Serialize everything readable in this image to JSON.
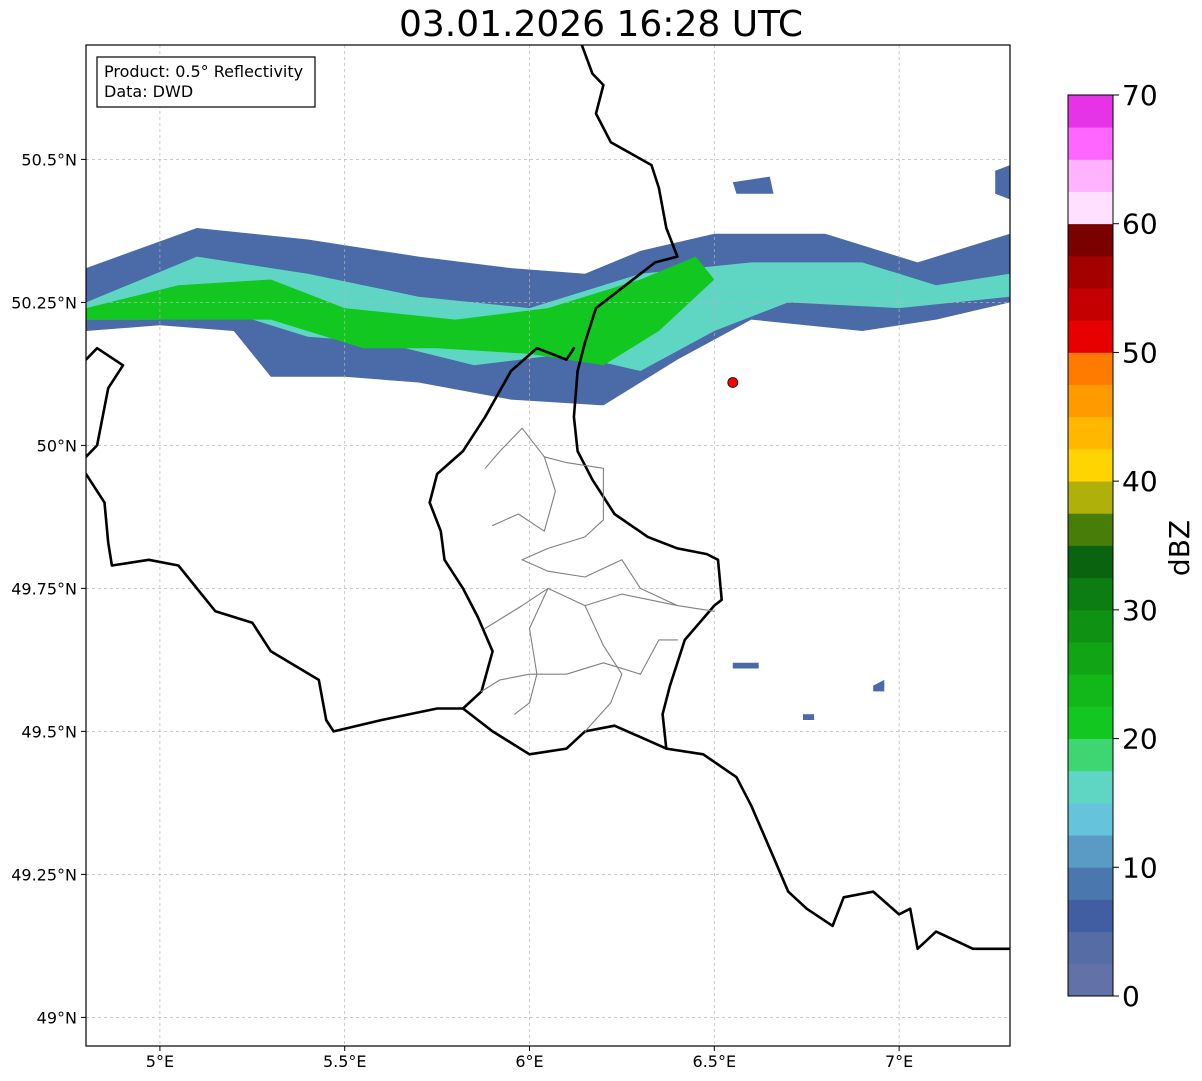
{
  "title": "03.01.2026 16:28 UTC",
  "info_box": {
    "product": "Product: 0.5° Reflectivity",
    "data": "Data: DWD"
  },
  "axes": {
    "lon_ticks": [
      {
        "value": 5.0,
        "label": "5°E"
      },
      {
        "value": 5.5,
        "label": "5.5°E"
      },
      {
        "value": 6.0,
        "label": "6°E"
      },
      {
        "value": 6.5,
        "label": "6.5°E"
      },
      {
        "value": 7.0,
        "label": "7°E"
      }
    ],
    "lat_ticks": [
      {
        "value": 50.5,
        "label": "50.5°N"
      },
      {
        "value": 50.25,
        "label": "50.25°N"
      },
      {
        "value": 50.0,
        "label": "50°N"
      },
      {
        "value": 49.75,
        "label": "49.75°N"
      },
      {
        "value": 49.5,
        "label": "49.5°N"
      },
      {
        "value": 49.25,
        "label": "49.25°N"
      },
      {
        "value": 49.0,
        "label": "49°N"
      }
    ],
    "lon_range": [
      4.8,
      7.3
    ],
    "lat_range": [
      48.95,
      50.7
    ],
    "grid": true
  },
  "colorbar": {
    "label": "dBZ",
    "min": 0,
    "max": 70,
    "ticks": [
      "0",
      "10",
      "20",
      "30",
      "40",
      "50",
      "60",
      "70"
    ],
    "colors": [
      "#6272a8",
      "#556ca5",
      "#425ea3",
      "#4a78ae",
      "#5a9bc6",
      "#66c3dc",
      "#5fd6c3",
      "#3ed673",
      "#12c71f",
      "#12b81a",
      "#11a515",
      "#0f9113",
      "#0c7d12",
      "#09630f",
      "#497d0a",
      "#afb10a",
      "#ffd400",
      "#ffb700",
      "#ff9a00",
      "#ff7b00",
      "#e60000",
      "#c40000",
      "#a50000",
      "#7b0000",
      "#ffe0ff",
      "#ffb3ff",
      "#ff66ff",
      "#e733e7"
    ]
  },
  "marker": {
    "lon": 6.55,
    "lat": 50.11,
    "color": "#ff0000"
  },
  "precip_swaths": [
    {
      "level": "light",
      "color": "#4a6aa8",
      "points": [
        [
          4.8,
          50.31
        ],
        [
          5.1,
          50.38
        ],
        [
          5.4,
          50.36
        ],
        [
          5.7,
          50.33
        ],
        [
          5.95,
          50.31
        ],
        [
          6.15,
          50.3
        ],
        [
          6.3,
          50.34
        ],
        [
          6.5,
          50.37
        ],
        [
          6.8,
          50.37
        ],
        [
          7.05,
          50.32
        ],
        [
          7.3,
          50.37
        ],
        [
          7.3,
          50.25
        ],
        [
          7.1,
          50.22
        ],
        [
          6.9,
          50.2
        ],
        [
          6.6,
          50.22
        ],
        [
          6.4,
          50.15
        ],
        [
          6.2,
          50.07
        ],
        [
          5.95,
          50.08
        ],
        [
          5.7,
          50.11
        ],
        [
          5.5,
          50.12
        ],
        [
          5.3,
          50.12
        ],
        [
          5.2,
          50.2
        ],
        [
          5.0,
          50.21
        ],
        [
          4.8,
          50.2
        ]
      ]
    },
    {
      "level": "moderate",
      "color": "#5fd6c3",
      "points": [
        [
          4.8,
          50.25
        ],
        [
          5.1,
          50.33
        ],
        [
          5.4,
          50.3
        ],
        [
          5.7,
          50.26
        ],
        [
          6.0,
          50.24
        ],
        [
          6.3,
          50.3
        ],
        [
          6.6,
          50.32
        ],
        [
          6.9,
          50.32
        ],
        [
          7.1,
          50.28
        ],
        [
          7.3,
          50.3
        ],
        [
          7.3,
          50.26
        ],
        [
          7.0,
          50.24
        ],
        [
          6.7,
          50.25
        ],
        [
          6.5,
          50.2
        ],
        [
          6.3,
          50.13
        ],
        [
          6.1,
          50.16
        ],
        [
          5.85,
          50.14
        ],
        [
          5.6,
          50.18
        ],
        [
          5.4,
          50.19
        ],
        [
          5.2,
          50.23
        ],
        [
          5.0,
          50.22
        ],
        [
          4.8,
          50.22
        ]
      ]
    },
    {
      "level": "heavy",
      "color": "#12c71f",
      "points": [
        [
          4.8,
          50.24
        ],
        [
          5.05,
          50.28
        ],
        [
          5.3,
          50.29
        ],
        [
          5.5,
          50.24
        ],
        [
          5.8,
          50.22
        ],
        [
          6.05,
          50.24
        ],
        [
          6.3,
          50.29
        ],
        [
          6.45,
          50.33
        ],
        [
          6.5,
          50.29
        ],
        [
          6.35,
          50.2
        ],
        [
          6.2,
          50.14
        ],
        [
          6.0,
          50.16
        ],
        [
          5.75,
          50.17
        ],
        [
          5.55,
          50.17
        ],
        [
          5.3,
          50.22
        ],
        [
          5.1,
          50.22
        ],
        [
          4.8,
          50.22
        ]
      ]
    },
    {
      "level": "light",
      "color": "#4a6aa8",
      "points": [
        [
          6.55,
          50.46
        ],
        [
          6.65,
          50.47
        ],
        [
          6.66,
          50.44
        ],
        [
          6.56,
          50.44
        ]
      ]
    },
    {
      "level": "light",
      "color": "#4a6aa8",
      "points": [
        [
          7.26,
          50.48
        ],
        [
          7.3,
          50.49
        ],
        [
          7.3,
          50.43
        ],
        [
          7.26,
          50.44
        ]
      ]
    },
    {
      "level": "light",
      "color": "#4a6aa8",
      "points": [
        [
          6.55,
          49.62
        ],
        [
          6.62,
          49.62
        ],
        [
          6.62,
          49.61
        ],
        [
          6.55,
          49.61
        ]
      ]
    },
    {
      "level": "light",
      "color": "#4a6aa8",
      "points": [
        [
          6.74,
          49.53
        ],
        [
          6.77,
          49.53
        ],
        [
          6.77,
          49.52
        ],
        [
          6.74,
          49.52
        ]
      ]
    },
    {
      "level": "light",
      "color": "#4a6aa8",
      "points": [
        [
          6.93,
          49.58
        ],
        [
          6.96,
          49.59
        ],
        [
          6.96,
          49.57
        ],
        [
          6.93,
          49.57
        ]
      ]
    }
  ],
  "borders": [
    {
      "kind": "country",
      "points": [
        [
          6.13,
          50.72
        ],
        [
          6.17,
          50.65
        ],
        [
          6.2,
          50.63
        ],
        [
          6.18,
          50.58
        ],
        [
          6.22,
          50.53
        ],
        [
          6.33,
          50.49
        ],
        [
          6.35,
          50.45
        ],
        [
          6.37,
          50.38
        ],
        [
          6.4,
          50.33
        ],
        [
          6.34,
          50.32
        ],
        [
          6.3,
          50.3
        ],
        [
          6.18,
          50.24
        ],
        [
          6.15,
          50.18
        ],
        [
          6.13,
          50.13
        ],
        [
          6.12,
          50.05
        ],
        [
          6.13,
          49.99
        ],
        [
          6.17,
          49.94
        ],
        [
          6.23,
          49.88
        ],
        [
          6.32,
          49.84
        ],
        [
          6.4,
          49.82
        ],
        [
          6.48,
          49.81
        ],
        [
          6.51,
          49.8
        ],
        [
          6.52,
          49.73
        ],
        [
          6.5,
          49.72
        ],
        [
          6.42,
          49.66
        ],
        [
          6.38,
          49.58
        ],
        [
          6.36,
          49.53
        ],
        [
          6.37,
          49.47
        ]
      ]
    },
    {
      "kind": "country",
      "points": [
        [
          6.37,
          49.47
        ],
        [
          6.47,
          49.46
        ],
        [
          6.56,
          49.42
        ],
        [
          6.6,
          49.37
        ],
        [
          6.66,
          49.28
        ],
        [
          6.7,
          49.22
        ],
        [
          6.75,
          49.19
        ],
        [
          6.82,
          49.16
        ],
        [
          6.85,
          49.21
        ],
        [
          6.93,
          49.22
        ],
        [
          7.0,
          49.18
        ],
        [
          7.03,
          49.19
        ],
        [
          7.05,
          49.12
        ],
        [
          7.1,
          49.15
        ],
        [
          7.2,
          49.12
        ],
        [
          7.3,
          49.12
        ]
      ]
    },
    {
      "kind": "country",
      "points": [
        [
          6.37,
          49.47
        ],
        [
          6.3,
          49.49
        ],
        [
          6.23,
          49.51
        ],
        [
          6.15,
          49.5
        ],
        [
          6.1,
          49.47
        ],
        [
          6.0,
          49.46
        ],
        [
          5.9,
          49.5
        ],
        [
          5.82,
          49.54
        ],
        [
          5.75,
          49.54
        ],
        [
          5.6,
          49.52
        ],
        [
          5.47,
          49.5
        ],
        [
          5.45,
          49.52
        ],
        [
          5.43,
          49.59
        ],
        [
          5.3,
          49.64
        ],
        [
          5.25,
          49.69
        ],
        [
          5.15,
          49.71
        ],
        [
          5.05,
          49.79
        ],
        [
          4.97,
          49.8
        ],
        [
          4.87,
          49.79
        ],
        [
          4.86,
          49.83
        ],
        [
          4.85,
          49.9
        ],
        [
          4.8,
          49.95
        ]
      ]
    },
    {
      "kind": "country",
      "points": [
        [
          5.82,
          49.54
        ],
        [
          5.87,
          49.57
        ],
        [
          5.9,
          49.64
        ],
        [
          5.86,
          49.7
        ],
        [
          5.82,
          49.75
        ],
        [
          5.77,
          49.8
        ],
        [
          5.76,
          49.85
        ],
        [
          5.73,
          49.9
        ],
        [
          5.75,
          49.95
        ],
        [
          5.82,
          49.99
        ],
        [
          5.88,
          50.05
        ],
        [
          5.95,
          50.13
        ],
        [
          6.02,
          50.17
        ],
        [
          6.1,
          50.15
        ],
        [
          6.12,
          50.17
        ]
      ]
    },
    {
      "kind": "country",
      "points": [
        [
          4.8,
          50.15
        ],
        [
          4.83,
          50.17
        ],
        [
          4.9,
          50.14
        ],
        [
          4.86,
          50.1
        ],
        [
          4.83,
          50.0
        ],
        [
          4.8,
          49.98
        ]
      ]
    },
    {
      "kind": "admin",
      "points": [
        [
          5.9,
          49.86
        ],
        [
          5.97,
          49.88
        ],
        [
          6.04,
          49.85
        ],
        [
          6.07,
          49.92
        ],
        [
          6.04,
          49.98
        ],
        [
          5.98,
          50.03
        ],
        [
          5.92,
          49.99
        ],
        [
          5.88,
          49.96
        ]
      ]
    },
    {
      "kind": "admin",
      "points": [
        [
          6.04,
          49.98
        ],
        [
          6.1,
          49.97
        ],
        [
          6.2,
          49.96
        ],
        [
          6.2,
          49.87
        ],
        [
          6.15,
          49.84
        ],
        [
          6.05,
          49.82
        ],
        [
          5.98,
          49.8
        ]
      ]
    },
    {
      "kind": "admin",
      "points": [
        [
          5.98,
          49.8
        ],
        [
          6.05,
          49.78
        ],
        [
          6.15,
          49.77
        ],
        [
          6.25,
          49.8
        ]
      ]
    },
    {
      "kind": "admin",
      "points": [
        [
          5.88,
          49.68
        ],
        [
          5.98,
          49.72
        ],
        [
          6.05,
          49.75
        ],
        [
          6.15,
          49.72
        ],
        [
          6.25,
          49.74
        ],
        [
          6.4,
          49.72
        ],
        [
          6.5,
          49.71
        ]
      ]
    },
    {
      "kind": "admin",
      "points": [
        [
          6.05,
          49.75
        ],
        [
          6.0,
          49.68
        ],
        [
          6.02,
          49.6
        ],
        [
          6.0,
          49.55
        ],
        [
          5.96,
          49.53
        ]
      ]
    },
    {
      "kind": "admin",
      "points": [
        [
          6.15,
          49.72
        ],
        [
          6.2,
          49.65
        ],
        [
          6.25,
          49.6
        ],
        [
          6.22,
          49.55
        ],
        [
          6.15,
          49.5
        ]
      ]
    },
    {
      "kind": "admin",
      "points": [
        [
          5.87,
          49.57
        ],
        [
          5.92,
          49.59
        ],
        [
          6.0,
          49.6
        ],
        [
          6.1,
          49.6
        ],
        [
          6.2,
          49.62
        ],
        [
          6.3,
          49.6
        ]
      ]
    },
    {
      "kind": "admin",
      "points": [
        [
          6.3,
          49.6
        ],
        [
          6.35,
          49.66
        ],
        [
          6.4,
          49.66
        ]
      ]
    },
    {
      "kind": "admin",
      "points": [
        [
          6.25,
          49.8
        ],
        [
          6.3,
          49.75
        ],
        [
          6.4,
          49.72
        ]
      ]
    }
  ]
}
